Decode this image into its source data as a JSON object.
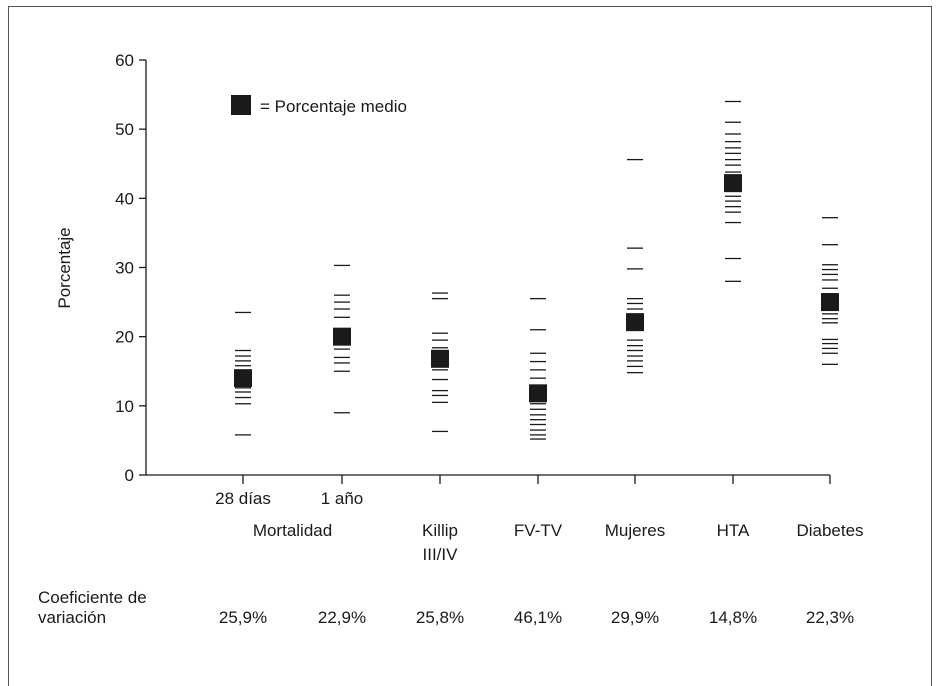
{
  "chart_data": {
    "type": "scatter",
    "ylabel": "Porcentaje",
    "ylim": [
      0,
      60
    ],
    "yticks": [
      0,
      10,
      20,
      30,
      40,
      50,
      60
    ],
    "legend": {
      "label": "= Porcentaje medio",
      "placement": "top-left"
    },
    "group_label": "Mortalidad",
    "cv_label": [
      "Coeficiente de",
      "variación"
    ],
    "categories": [
      {
        "label": [
          "28 días"
        ],
        "mean": 14.0,
        "cv": "25,9%",
        "values": [
          5.8,
          10.3,
          11.2,
          12.0,
          12.6,
          13.4,
          14.2,
          15.0,
          15.8,
          16.5,
          17.2,
          18.0,
          23.5
        ]
      },
      {
        "label": [
          "1 año"
        ],
        "mean": 20.0,
        "cv": "22,9%",
        "values": [
          9.0,
          15.0,
          16.2,
          17.0,
          18.2,
          19.2,
          20.4,
          21.0,
          22.8,
          24.0,
          25.0,
          26.0,
          30.3
        ]
      },
      {
        "label": [
          "Killip",
          "III/IV"
        ],
        "mean": 16.8,
        "cv": "25,8%",
        "values": [
          6.3,
          10.5,
          11.5,
          12.2,
          13.8,
          15.2,
          16.1,
          16.6,
          17.4,
          18.4,
          19.5,
          20.5,
          25.5,
          26.3
        ]
      },
      {
        "label": [
          "FV-TV"
        ],
        "mean": 11.8,
        "cv": "46,1%",
        "values": [
          5.2,
          5.8,
          6.5,
          7.3,
          8.0,
          8.7,
          9.5,
          10.3,
          12.2,
          13.0,
          14.0,
          15.2,
          16.4,
          17.6,
          21.0,
          25.5
        ]
      },
      {
        "label": [
          "Mujeres"
        ],
        "mean": 22.1,
        "cv": "29,9%",
        "values": [
          14.8,
          15.7,
          16.5,
          17.2,
          18.0,
          18.7,
          19.5,
          21.0,
          23.0,
          24.0,
          24.8,
          25.5,
          29.8,
          32.8,
          45.6
        ]
      },
      {
        "label": [
          "HTA"
        ],
        "mean": 42.2,
        "cv": "14,8%",
        "values": [
          28.0,
          31.3,
          36.5,
          38.0,
          38.8,
          39.6,
          40.3,
          41.0,
          43.0,
          43.8,
          44.8,
          45.6,
          46.5,
          47.3,
          48.2,
          49.3,
          51.0,
          54.0
        ]
      },
      {
        "label": [
          "Diabetes"
        ],
        "mean": 25.0,
        "cv": "22,3%",
        "values": [
          16.0,
          17.6,
          18.3,
          19.0,
          19.6,
          22.0,
          22.6,
          23.3,
          24.0,
          26.2,
          27.0,
          28.2,
          29.0,
          29.7,
          30.4,
          33.3,
          37.2
        ]
      }
    ]
  }
}
